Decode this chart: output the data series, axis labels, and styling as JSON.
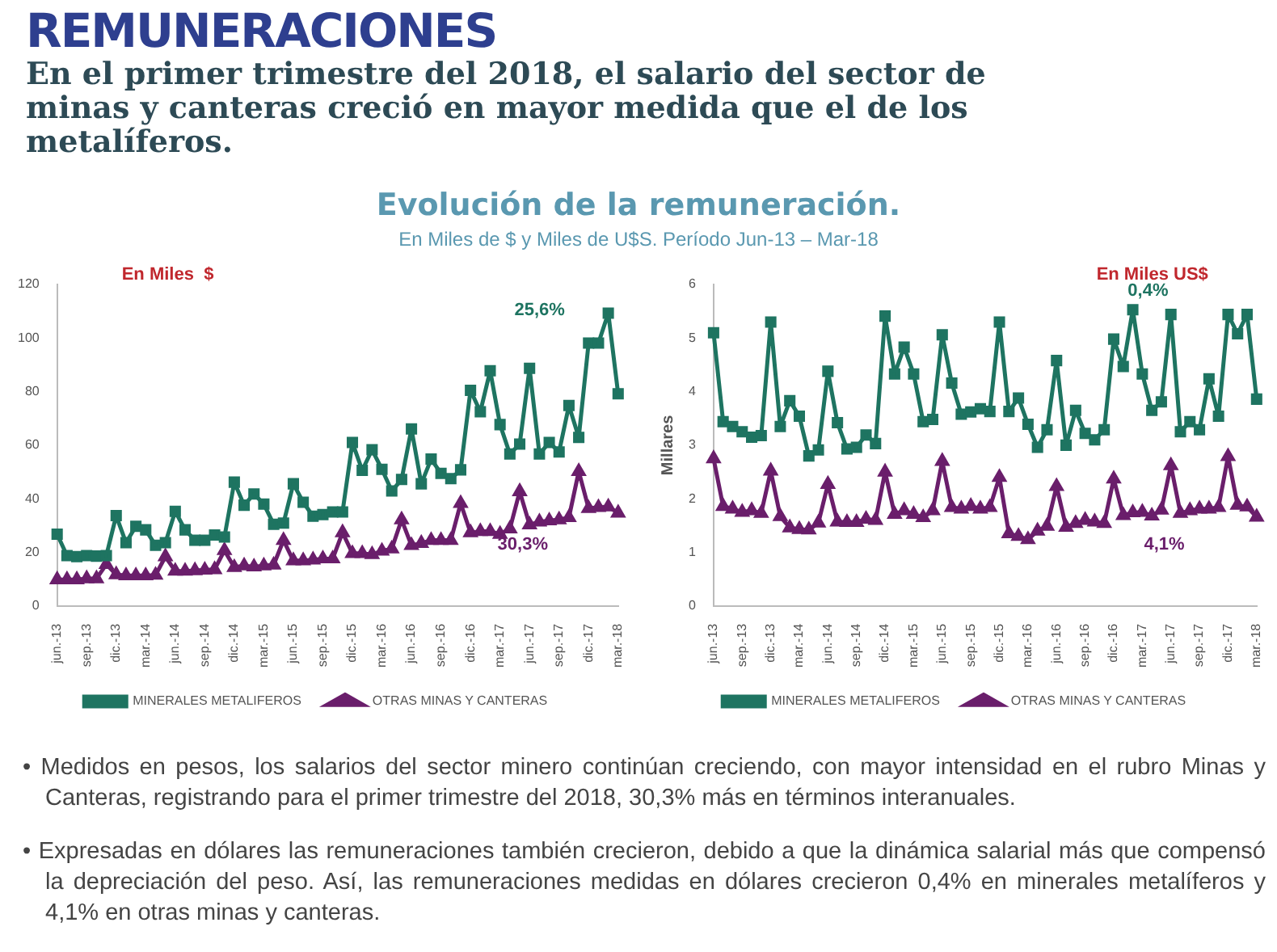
{
  "chart_data": [
    {
      "type": "other",
      "title": "REMUNERACIONES",
      "subtitle": "En el primer trimestre del 2018, el salario del sector de minas y canteras creció en mayor medida que el de los metalíferos."
    },
    {
      "type": "line",
      "title": "Evolución de la remuneración.",
      "subtitle": "En Miles de $ y Miles de U$S. Período Jun-13 – Mar-18",
      "categories": [
        "jun.-13",
        null,
        null,
        "sep.-13",
        null,
        null,
        "dic.-13",
        null,
        null,
        "mar.-14",
        null,
        null,
        "jun.-14",
        null,
        null,
        "sep.-14",
        null,
        null,
        "dic.-14",
        null,
        null,
        "mar.-15",
        null,
        null,
        "jun.-15",
        null,
        null,
        "sep.-15",
        null,
        null,
        "dic.-15",
        null,
        null,
        "mar.-16",
        null,
        null,
        "jun.-16",
        null,
        null,
        "sep.-16",
        null,
        null,
        "dic.-16",
        null,
        null,
        "mar.-17",
        null,
        null,
        "jun.-17",
        null,
        null,
        "sep.-17",
        null,
        null,
        "dic.-17",
        null,
        null,
        "mar.-18"
      ],
      "series": [
        {
          "name": "MINERALES METALIFEROS",
          "color": "#1e7461",
          "marker": "square",
          "values": [
            26.8,
            18.8,
            18.4,
            18.8,
            18.6,
            18.8,
            33.7,
            23.6,
            29.7,
            28.4,
            22.6,
            23.6,
            35.3,
            28.4,
            24.5,
            24.5,
            26.5,
            25.7,
            46.2,
            37.6,
            41.8,
            38,
            30.5,
            30.9,
            45.6,
            38.7,
            33.5,
            34.1,
            35.1,
            35.1,
            61,
            50.6,
            58.3,
            51,
            42.9,
            47.2,
            66.1,
            45.6,
            54.8,
            49.5,
            47.5,
            50.8,
            80.5,
            72.5,
            87.8,
            67.7,
            56.7,
            60.4,
            88.7,
            56.7,
            61,
            57.5,
            74.8,
            62.9,
            98.1,
            98.1,
            109.3,
            79.2
          ]
        },
        {
          "name": "OTRAS MINAS Y CANTERAS",
          "color": "#6a1e6b",
          "marker": "triangle",
          "values": [
            9.8,
            9.8,
            9.8,
            10.2,
            10.2,
            15.5,
            11.7,
            11.3,
            11.3,
            11.3,
            11.5,
            18.4,
            13,
            13,
            13.2,
            13.4,
            13.6,
            20.7,
            14.4,
            15,
            14.6,
            15,
            15.3,
            24.5,
            16.9,
            16.9,
            17.2,
            17.6,
            17.6,
            27.4,
            19.6,
            19.6,
            19.2,
            20.5,
            21.3,
            32.2,
            22.6,
            23.4,
            24.5,
            24.5,
            24.5,
            38.3,
            27.4,
            27.8,
            27.8,
            26.8,
            28.8,
            42.7,
            30.3,
            31.4,
            31.8,
            32.2,
            33,
            50.2,
            36.4,
            36.8,
            37,
            34.7
          ]
        }
      ],
      "ylim": [
        0,
        120
      ],
      "yticks": [
        0,
        20,
        40,
        60,
        80,
        100,
        120
      ],
      "grid": false,
      "legend": "bottom",
      "line_style": "solid",
      "annotations": [
        "En Miles  $",
        "25,6%",
        "30,3%"
      ]
    },
    {
      "type": "line",
      "ylabel": "Millares",
      "categories": [
        "jun.-13",
        null,
        null,
        "sep.-13",
        null,
        null,
        "dic.-13",
        null,
        null,
        "mar.-14",
        null,
        null,
        "jun.-14",
        null,
        null,
        "sep.-14",
        null,
        null,
        "dic.-14",
        null,
        null,
        "mar.-15",
        null,
        null,
        "jun.-15",
        null,
        null,
        "sep.-15",
        null,
        null,
        "dic.-15",
        null,
        null,
        "mar.-16",
        null,
        null,
        "jun.-16",
        null,
        null,
        "sep.-16",
        null,
        null,
        "dic.-16",
        null,
        null,
        "mar.-17",
        null,
        null,
        "jun.-17",
        null,
        null,
        "sep.-17",
        null,
        null,
        "dic.-17",
        null,
        null,
        "mar.-18"
      ],
      "series": [
        {
          "name": "MINERALES METALIFEROS",
          "color": "#1e7461",
          "marker": "square",
          "values": [
            5.1,
            3.44,
            3.35,
            3.25,
            3.15,
            3.18,
            5.3,
            3.35,
            3.83,
            3.54,
            2.8,
            2.91,
            4.38,
            3.42,
            2.93,
            2.96,
            3.19,
            3.03,
            5.41,
            4.33,
            4.83,
            4.33,
            3.44,
            3.48,
            5.06,
            4.16,
            3.58,
            3.62,
            3.68,
            3.63,
            5.3,
            3.63,
            3.88,
            3.39,
            2.96,
            3.29,
            4.58,
            3,
            3.65,
            3.22,
            3.1,
            3.29,
            4.98,
            4.47,
            5.53,
            4.33,
            3.65,
            3.81,
            5.44,
            3.25,
            3.44,
            3.29,
            4.24,
            3.54,
            5.44,
            5.08,
            5.44,
            3.86
          ]
        },
        {
          "name": "OTRAS MINAS Y CANTERAS",
          "color": "#6a1e6b",
          "marker": "triangle",
          "values": [
            2.75,
            1.86,
            1.81,
            1.75,
            1.78,
            1.73,
            2.52,
            1.67,
            1.46,
            1.43,
            1.42,
            1.55,
            2.27,
            1.57,
            1.56,
            1.56,
            1.62,
            1.6,
            2.5,
            1.71,
            1.78,
            1.71,
            1.65,
            1.78,
            2.7,
            1.84,
            1.81,
            1.86,
            1.81,
            1.84,
            2.4,
            1.35,
            1.3,
            1.24,
            1.4,
            1.49,
            2.23,
            1.47,
            1.54,
            1.6,
            1.57,
            1.54,
            2.37,
            1.69,
            1.74,
            1.75,
            1.68,
            1.79,
            2.62,
            1.73,
            1.78,
            1.81,
            1.81,
            1.84,
            2.79,
            1.88,
            1.85,
            1.66
          ]
        }
      ],
      "ylim": [
        0,
        6
      ],
      "yticks": [
        0,
        1,
        2,
        3,
        4,
        5,
        6
      ],
      "grid": false,
      "legend": "bottom",
      "line_style": "solid",
      "annotations": [
        "En Miles US$",
        "0,4%",
        "4,1%"
      ]
    },
    {
      "type": "other",
      "annotations": [
        "• Medidos en pesos, los salarios del sector minero continúan creciendo, con mayor intensidad en el rubro Minas y Canteras, registrando para el primer trimestre del 2018, 30,3%  más en términos interanuales.",
        "• Expresadas en dólares las remuneraciones también crecieron, debido a que la dinámica salarial más que compensó la depreciación del peso. Así, las remuneraciones medidas en dólares crecieron 0,4% en minerales metalíferos y 4,1% en otras minas y canteras."
      ]
    }
  ]
}
